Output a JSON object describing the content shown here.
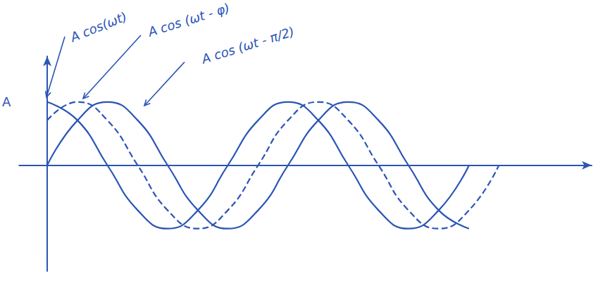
{
  "chart_data": {
    "type": "line",
    "color": "#2b55b5",
    "xlim": [
      -0.73,
      14.2
    ],
    "ylim": [
      -1.67,
      1.72
    ],
    "yticks": [
      {
        "value": 1,
        "label": "A"
      }
    ],
    "tick_labels": "y",
    "grid": false,
    "series": [
      {
        "name": "A cos(ωt)",
        "line_style": "solid",
        "x": [
          0,
          0.79,
          1.57,
          2.36,
          3.14,
          3.93,
          4.71,
          5.5,
          6.28,
          7.07,
          7.85,
          8.64,
          9.42,
          10.21,
          11.0
        ],
        "values": [
          1,
          0.71,
          0,
          -0.71,
          -1,
          -0.71,
          0,
          0.71,
          1,
          0.71,
          0,
          -0.71,
          -1,
          -0.71,
          0
        ]
      },
      {
        "name": "A cos (ωt - φ)",
        "line_style": "dashed",
        "x": [
          0,
          0.79,
          1.57,
          2.36,
          3.14,
          3.93,
          4.71,
          5.5,
          6.28,
          7.07,
          7.85,
          8.64,
          9.42,
          10.21,
          11.0,
          11.78
        ],
        "values": [
          0.71,
          1,
          0.71,
          0,
          -0.71,
          -1,
          -0.71,
          0,
          0.71,
          1,
          0.71,
          0,
          -0.71,
          -1,
          -0.71,
          0
        ]
      },
      {
        "name": "A cos (ωt - π/2)",
        "line_style": "solid",
        "x": [
          0,
          0.79,
          1.57,
          2.36,
          3.14,
          3.93,
          4.71,
          5.5,
          6.28,
          7.07,
          7.85,
          8.64,
          9.42,
          10.21,
          11.0
        ],
        "values": [
          0,
          0.71,
          1,
          0.71,
          0,
          -0.71,
          -1,
          -0.71,
          0,
          0.71,
          1,
          0.71,
          0,
          -0.71,
          -1
        ]
      }
    ]
  }
}
